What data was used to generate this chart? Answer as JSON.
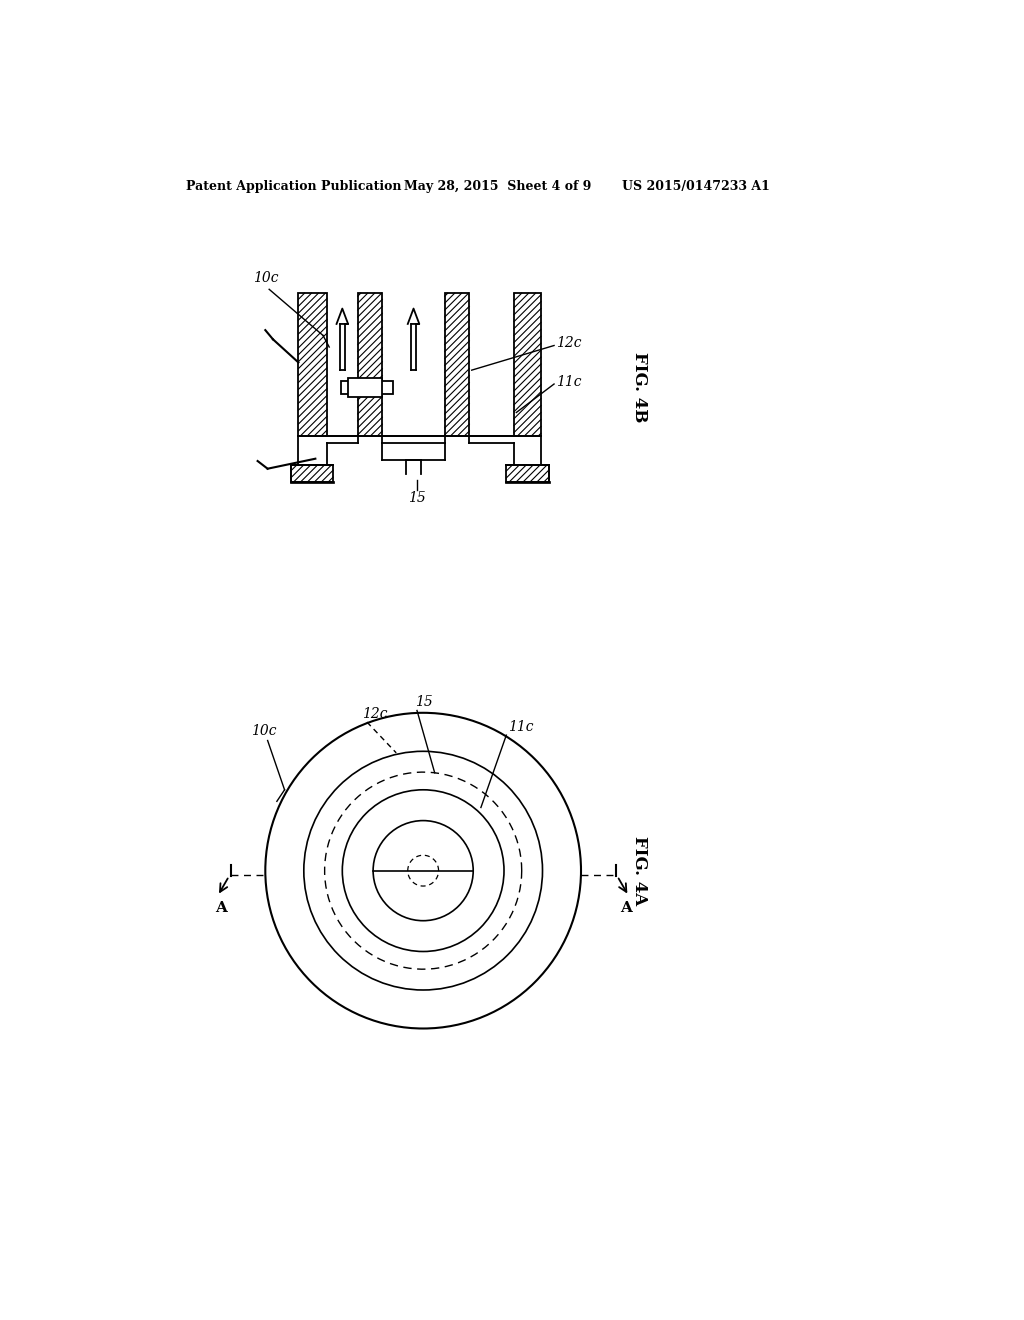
{
  "bg_color": "#ffffff",
  "header_left": "Patent Application Publication",
  "header_mid": "May 28, 2015  Sheet 4 of 9",
  "header_right": "US 2015/0147233 A1",
  "fig4b_label": "FIG. 4B",
  "fig4a_label": "FIG. 4A",
  "label_10c": "10c",
  "label_11c": "11c",
  "label_12c": "12c",
  "label_15": "15",
  "label_A": "A"
}
